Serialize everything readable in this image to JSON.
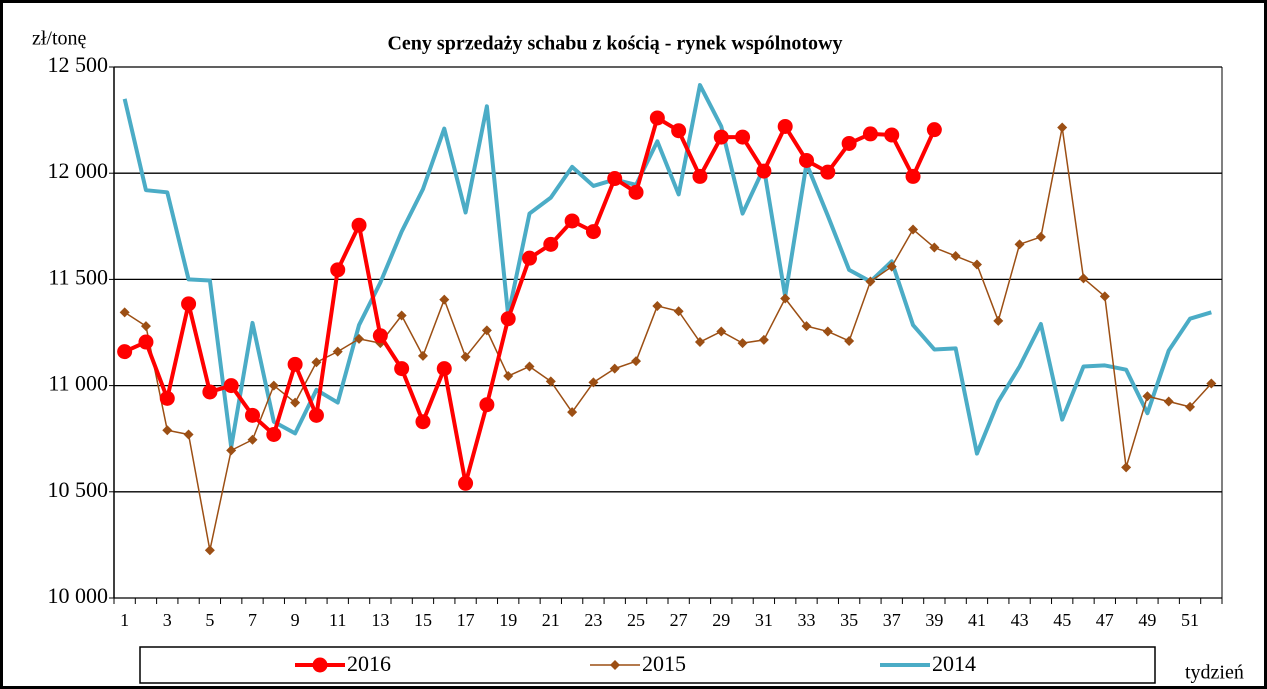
{
  "chart_data": {
    "type": "line",
    "title": "Ceny sprzedaży schabu z kością - rynek wspólnotowy",
    "y_label": "zł/tonę",
    "x_label": "tydzień",
    "categories": [
      "1",
      null,
      "3",
      null,
      "5",
      null,
      "7",
      null,
      "9",
      null,
      "11",
      null,
      "13",
      null,
      "15",
      null,
      "17",
      null,
      "19",
      null,
      "21",
      null,
      "23",
      null,
      "25",
      null,
      "27",
      null,
      "29",
      null,
      "31",
      null,
      "33",
      null,
      "35",
      null,
      "37",
      null,
      "39",
      null,
      "41",
      null,
      "43",
      null,
      "45",
      null,
      "47",
      null,
      "49",
      null,
      "51",
      null
    ],
    "ylim": [
      10000,
      12500
    ],
    "yticks": [
      {
        "value": 10000,
        "label": "10 000"
      },
      {
        "value": 10500,
        "label": "10 500"
      },
      {
        "value": 11000,
        "label": "11 000"
      },
      {
        "value": 11500,
        "label": "11 500"
      },
      {
        "value": 12000,
        "label": "12 000"
      },
      {
        "value": 12500,
        "label": "12 500"
      }
    ],
    "grid": true,
    "legend": "bottom",
    "series": [
      {
        "name": "2016",
        "color": "#ff0000",
        "values": [
          11160,
          11205,
          10940,
          11385,
          10970,
          11000,
          10860,
          10770,
          11100,
          10860,
          11545,
          11755,
          11235,
          11080,
          10830,
          11080,
          10540,
          10910,
          11315,
          11600,
          11665,
          11775,
          11725,
          11975,
          11910,
          12260,
          12200,
          11985,
          12170,
          12170,
          12010,
          12220,
          12060,
          12005,
          12140,
          12185,
          12180,
          11985,
          12205,
          null,
          null,
          null,
          null,
          null,
          null,
          null,
          null,
          null,
          null,
          null,
          null,
          null
        ]
      },
      {
        "name": "2015",
        "color": "#9c4f14",
        "values": [
          11345,
          11280,
          10790,
          10770,
          10225,
          10695,
          10745,
          11000,
          10920,
          11110,
          11160,
          11220,
          11200,
          11330,
          11140,
          11405,
          11135,
          11260,
          11045,
          11090,
          11020,
          10875,
          11015,
          11080,
          11115,
          11375,
          11350,
          11205,
          11255,
          11200,
          11215,
          11410,
          11280,
          11255,
          11210,
          11490,
          11560,
          11735,
          11650,
          11610,
          11570,
          11305,
          11665,
          11700,
          12215,
          11505,
          11420,
          10615,
          10950,
          10925,
          10900,
          11010
        ]
      },
      {
        "name": "2014",
        "color": "#4bacc6",
        "values": [
          12350,
          11920,
          11910,
          11500,
          11495,
          10710,
          11295,
          10830,
          10775,
          10980,
          10920,
          11285,
          11485,
          11725,
          11925,
          12210,
          11815,
          12315,
          11330,
          11810,
          11885,
          12030,
          11940,
          11970,
          11945,
          12150,
          11900,
          12415,
          12220,
          11810,
          12025,
          11420,
          12045,
          11800,
          11545,
          11490,
          11585,
          11285,
          11170,
          11175,
          10680,
          10925,
          11090,
          11290,
          10840,
          11090,
          11095,
          11075,
          10870,
          11165,
          11315,
          11345
        ]
      }
    ]
  }
}
